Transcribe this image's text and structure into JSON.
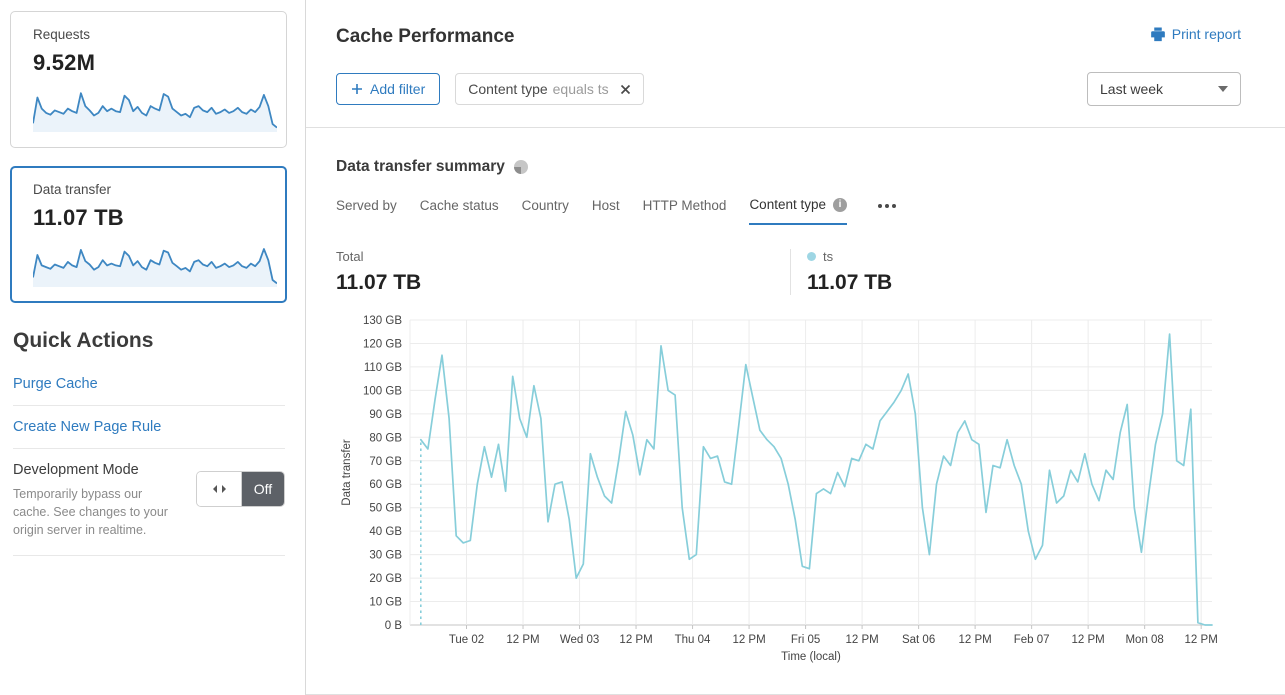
{
  "colors": {
    "accent_blue": "#2f7bbf",
    "chart_line": "#87ceda",
    "legend_dot": "#9ed6e4",
    "spark_line": "#3e87c2",
    "spark_fill": "#ebf3fa",
    "grid": "#ececec",
    "axis": "#c4c4c4"
  },
  "sidebar": {
    "cards": [
      {
        "label": "Requests",
        "value": "9.52M",
        "selected": false,
        "sparkline": [
          18,
          78,
          52,
          42,
          38,
          48,
          44,
          40,
          52,
          46,
          42,
          88,
          58,
          48,
          36,
          42,
          58,
          46,
          52,
          46,
          44,
          82,
          72,
          46,
          56,
          42,
          36,
          58,
          52,
          48,
          86,
          80,
          52,
          44,
          36,
          40,
          32,
          54,
          58,
          48,
          44,
          54,
          40,
          44,
          50,
          42,
          46,
          54,
          44,
          40,
          50,
          44,
          56,
          84,
          58,
          16,
          8
        ]
      },
      {
        "label": "Data transfer",
        "value": "11.07 TB",
        "selected": true,
        "sparkline": [
          20,
          72,
          48,
          44,
          40,
          50,
          46,
          42,
          56,
          48,
          44,
          84,
          58,
          50,
          38,
          44,
          60,
          48,
          52,
          48,
          46,
          80,
          70,
          48,
          58,
          44,
          38,
          60,
          54,
          50,
          82,
          78,
          54,
          46,
          38,
          42,
          34,
          56,
          60,
          50,
          46,
          56,
          42,
          46,
          52,
          44,
          48,
          56,
          46,
          42,
          52,
          46,
          58,
          86,
          60,
          14,
          6
        ]
      }
    ],
    "quick_actions": {
      "title": "Quick Actions",
      "links": [
        "Purge Cache",
        "Create New Page Rule"
      ],
      "dev_mode": {
        "title": "Development Mode",
        "description": "Temporarily bypass our cache. See changes to your origin server in realtime.",
        "state": "Off"
      }
    }
  },
  "header": {
    "title": "Cache Performance",
    "print_label": "Print report"
  },
  "filters": {
    "add_label": "Add filter",
    "chip": {
      "field": "Content type",
      "condition": "equals ts"
    },
    "range_value": "Last week"
  },
  "summary": {
    "title": "Data transfer summary",
    "tabs": [
      {
        "label": "Served by",
        "active": false,
        "info": false
      },
      {
        "label": "Cache status",
        "active": false,
        "info": false
      },
      {
        "label": "Country",
        "active": false,
        "info": false
      },
      {
        "label": "Host",
        "active": false,
        "info": false
      },
      {
        "label": "HTTP Method",
        "active": false,
        "info": false
      },
      {
        "label": "Content type",
        "active": true,
        "info": true
      }
    ],
    "total_label": "Total",
    "total_value": "11.07 TB",
    "legend_label": "ts",
    "legend_value": "11.07 TB"
  },
  "chart_data": {
    "type": "line",
    "title": "Data transfer summary",
    "xlabel": "Time (local)",
    "ylabel": "Data transfer",
    "ylim_gb": [
      0,
      130
    ],
    "y_tick_step_gb": 10,
    "y_tick_labels": [
      "0 B",
      "10 GB",
      "20 GB",
      "30 GB",
      "40 GB",
      "50 GB",
      "60 GB",
      "70 GB",
      "80 GB",
      "90 GB",
      "100 GB",
      "110 GB",
      "120 GB",
      "130 GB"
    ],
    "x_domain_hours": [
      0,
      170.3
    ],
    "x_ticks": [
      {
        "label": "Tue 02",
        "hour": 12
      },
      {
        "label": "12 PM",
        "hour": 24
      },
      {
        "label": "Wed 03",
        "hour": 36
      },
      {
        "label": "12 PM",
        "hour": 48
      },
      {
        "label": "Thu 04",
        "hour": 60
      },
      {
        "label": "12 PM",
        "hour": 72
      },
      {
        "label": "Fri 05",
        "hour": 84
      },
      {
        "label": "12 PM",
        "hour": 96
      },
      {
        "label": "Sat 06",
        "hour": 108
      },
      {
        "label": "12 PM",
        "hour": 120
      },
      {
        "label": "Feb 07",
        "hour": 132
      },
      {
        "label": "12 PM",
        "hour": 144
      },
      {
        "label": "Mon 08",
        "hour": 156
      },
      {
        "label": "12 PM",
        "hour": 168
      }
    ],
    "grid": true,
    "legend_position": "above-right",
    "leading_dashed_drop": true,
    "series": [
      {
        "name": "ts",
        "total": "11.07 TB",
        "start_hour": 2.3,
        "interval_hours": 1.5,
        "values_gb": [
          79,
          75,
          96,
          115,
          88,
          38,
          35,
          36,
          60,
          76,
          63,
          77,
          57,
          106,
          88,
          80,
          102,
          88,
          44,
          60,
          61,
          45,
          20,
          26,
          73,
          63,
          55,
          52,
          70,
          91,
          81,
          64,
          79,
          75,
          119,
          100,
          98,
          50,
          28,
          30,
          76,
          71,
          72,
          61,
          60,
          85,
          111,
          97,
          83,
          79,
          76,
          71,
          60,
          45,
          25,
          24,
          56,
          58,
          56,
          65,
          59,
          71,
          70,
          77,
          75,
          87,
          91,
          95,
          100,
          107,
          90,
          50,
          30,
          60,
          72,
          68,
          82,
          87,
          79,
          77,
          48,
          68,
          67,
          79,
          68,
          60,
          40,
          28,
          34,
          66,
          52,
          55,
          66,
          61,
          73,
          60,
          53,
          66,
          62,
          82,
          94,
          50,
          31,
          55,
          77,
          90,
          124,
          70,
          68,
          92,
          1,
          0,
          0
        ]
      }
    ]
  }
}
